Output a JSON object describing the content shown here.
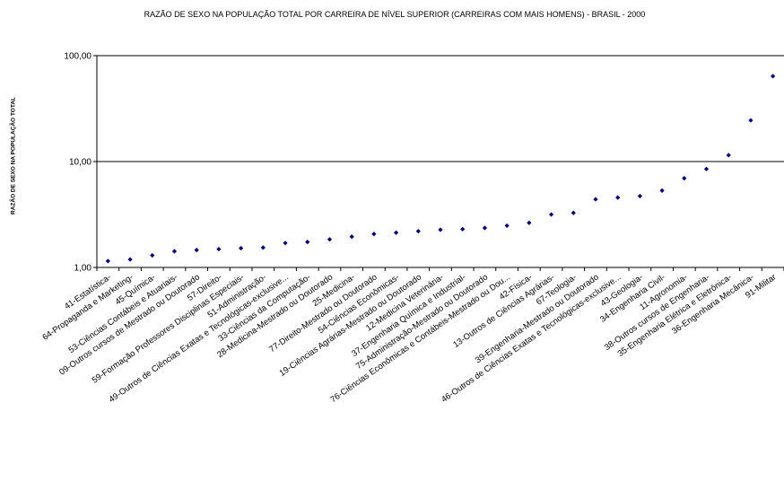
{
  "chart_data": {
    "type": "scatter",
    "title": "RAZÃO DE SEXO NA POPULAÇÃO TOTAL POR CARREIRA DE NÍVEL SUPERIOR (CARREIRAS COM MAIS HOMENS) - BRASIL - 2000",
    "ylabel": "RAZÃO DE SEXO NA POPULAÇÃO TOTAL",
    "xlabel": "",
    "yscale": "log",
    "ylim": [
      1,
      100
    ],
    "yticks": [
      "1,00",
      "10,00",
      "100,00"
    ],
    "grid": "horizontal major lines",
    "marker_color": "#000080",
    "categories": [
      "41-Estatística-",
      "64-Propaganda e Marketing-",
      "45-Química-",
      "53-Ciências Contábeis e Atuariais-",
      "09-Outros cursos de Mestrado ou Doutorado",
      "57-Direito-",
      "59-Formação Professores Disciplinas Especiais-",
      "51-Administração-",
      "49-Outros de Ciências Exatas e Tecnológicas-exclusive...",
      "33-Ciências da Computação-",
      "28-Medicina-Mestrado ou Doutorado",
      "25-Medicina-",
      "77-Direito-Mestrado ou Doutorado",
      "54-Ciências Econômicas-",
      "19-Ciências Agrárias-Mestrado ou Doutorado",
      "12-Medicina Veterinária-",
      "37-Engenharia Química e Industrial-",
      "75-Administração-Mestrado ou Doutorado",
      "76-Ciências Econômicas e Contábeis-Mestrado ou Dou...",
      "42-Física-",
      "13-Outros de Ciências Agrárias-",
      "67-Teologia-",
      "39-Engenharia-Mestrado ou Doutorado",
      "46-Outros de Ciências Exatas e Tecnológicas-exclusive...",
      "43-Geologia-",
      "34-Engenharia Civil-",
      "11-Agronomia-",
      "38-Outros cursos de Engenharia-",
      "35-Engenharia Elétrica e Eletrônica-",
      "36-Engenharia Mecânica-",
      "91-Militar"
    ],
    "values": [
      1.15,
      1.19,
      1.3,
      1.42,
      1.46,
      1.49,
      1.52,
      1.54,
      1.7,
      1.74,
      1.84,
      1.95,
      2.07,
      2.13,
      2.2,
      2.27,
      2.3,
      2.36,
      2.48,
      2.64,
      3.16,
      3.27,
      4.4,
      4.57,
      4.72,
      5.32,
      6.95,
      8.5,
      11.5,
      24.5,
      64.0
    ]
  }
}
